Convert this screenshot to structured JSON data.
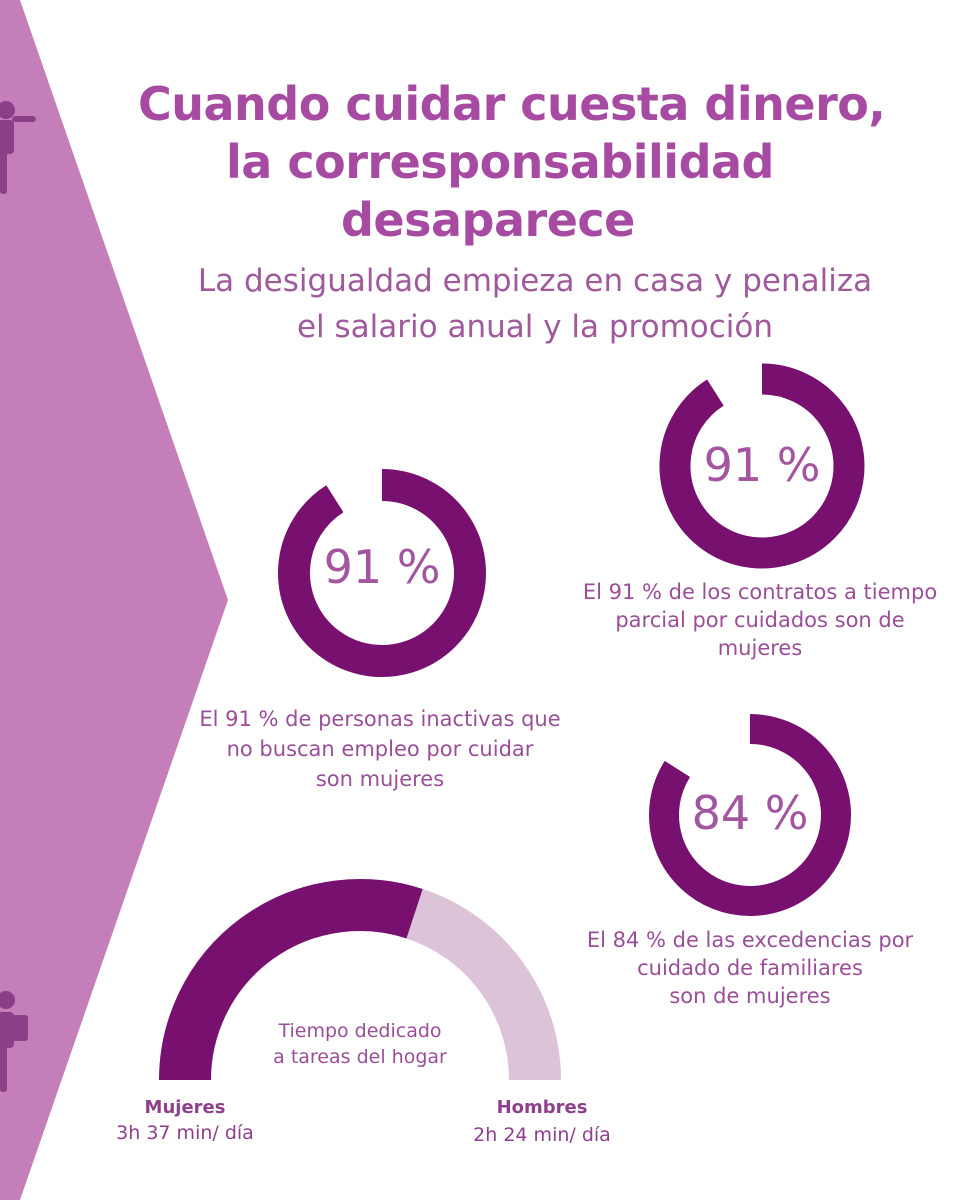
{
  "colors": {
    "ring": "#77106f",
    "gauge_light": "#dcc3d8",
    "chevron": "#c47fba",
    "title": "#a64aa2",
    "text": "#9b4e98"
  },
  "header": {
    "title_lines": [
      "Cuando cuidar cuesta dinero,",
      "la corresponsabilidad",
      "desaparece"
    ],
    "subtitle_lines": [
      "La desigualdad empieza en casa y penaliza",
      "el salario anual y la promoción"
    ]
  },
  "decorations": {
    "icon_top": "person-icon",
    "icon_bottom": "person-icon"
  },
  "chart_data": [
    {
      "type": "pie",
      "value_label": "91 %",
      "values": [
        91,
        9
      ],
      "categories": [
        "mujeres",
        ""
      ],
      "caption_lines": [
        "El 91 % de personas inactivas que",
        "no buscan empleo por cuidar",
        "son mujeres"
      ]
    },
    {
      "type": "pie",
      "value_label": "91 %",
      "values": [
        91,
        9
      ],
      "categories": [
        "mujeres",
        ""
      ],
      "caption_lines": [
        "El 91 % de los contratos a tiempo",
        "parcial por cuidados son de",
        "mujeres"
      ]
    },
    {
      "type": "pie",
      "value_label": "84 %",
      "values": [
        84,
        16
      ],
      "categories": [
        "mujeres",
        ""
      ],
      "caption_lines": [
        "El 84 % de las excedencias por",
        "cuidado de familiares",
        "son de mujeres"
      ]
    },
    {
      "type": "pie",
      "center_lines": [
        "Tiempo dedicado",
        "a tareas del hogar"
      ],
      "categories": [
        "Mujeres",
        "Hombres"
      ],
      "value_labels": [
        "3h 37 min/ día",
        "2h 24 min/ día"
      ],
      "values": [
        217,
        144
      ]
    }
  ]
}
